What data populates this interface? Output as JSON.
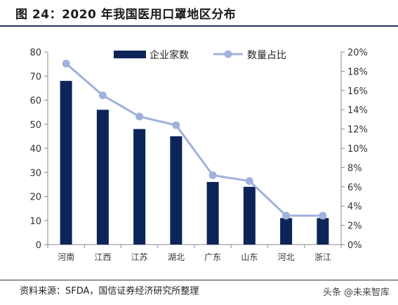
{
  "figure": {
    "title": "图 24：2020 年我国医用口罩地区分布",
    "source": "资料来源：SFDA，国信证券经济研究所整理",
    "watermark": "头条 @未来智库"
  },
  "colors": {
    "bar": "#0d2458",
    "line": "#9fb1dc",
    "axis": "#888888",
    "title_rule": "#1f3864"
  },
  "chart_data": {
    "type": "bar",
    "categories": [
      "河南",
      "江西",
      "江苏",
      "湖北",
      "广东",
      "山东",
      "河北",
      "浙江"
    ],
    "series": [
      {
        "name": "企业家数",
        "type": "bar",
        "axis": "left",
        "values": [
          68,
          56,
          48,
          45,
          26,
          24,
          11,
          11
        ]
      },
      {
        "name": "数量占比",
        "type": "line",
        "axis": "right",
        "values": [
          18.8,
          15.5,
          13.3,
          12.4,
          7.2,
          6.6,
          3.0,
          3.0
        ]
      }
    ],
    "y_left": {
      "min": 0,
      "max": 80,
      "step": 10
    },
    "y_right": {
      "min": 0,
      "max": 20,
      "step": 2,
      "unit": "%"
    },
    "grid": false,
    "legend": "top-right"
  }
}
